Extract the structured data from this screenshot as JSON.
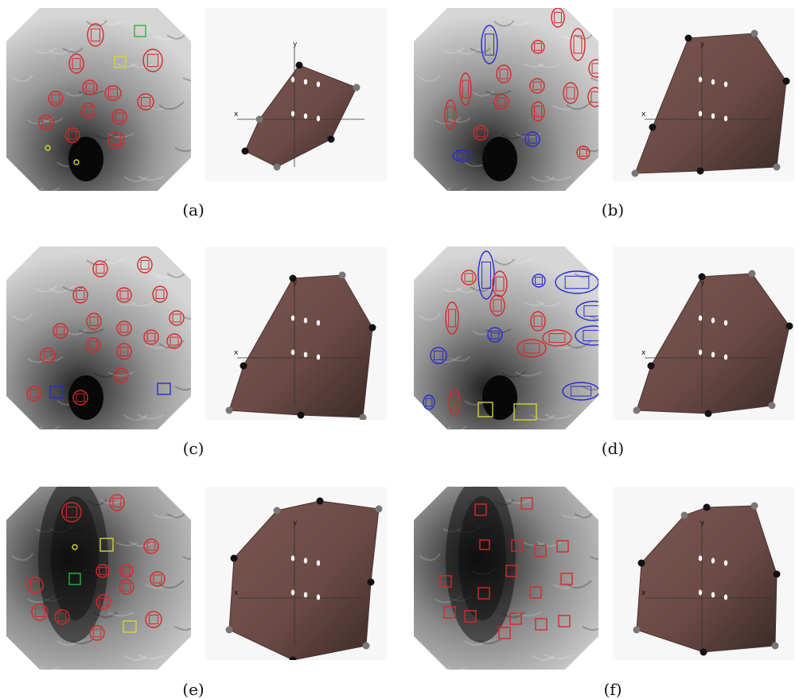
{
  "figure": {
    "panels": [
      {
        "id": "a",
        "caption": "(a)",
        "endoscopy": {
          "tone": "light",
          "features": [
            {
              "shape": "ellipse",
              "color": "red"
            },
            {
              "shape": "ellipse",
              "color": "red"
            },
            {
              "shape": "ellipse",
              "color": "red"
            },
            {
              "shape": "ellipse",
              "color": "red"
            },
            {
              "shape": "ellipse",
              "color": "red"
            },
            {
              "shape": "ellipse",
              "color": "red"
            },
            {
              "shape": "ellipse",
              "color": "red"
            },
            {
              "shape": "ellipse",
              "color": "red"
            },
            {
              "shape": "ellipse",
              "color": "red"
            },
            {
              "shape": "ellipse",
              "color": "red"
            },
            {
              "shape": "ellipse",
              "color": "red"
            },
            {
              "shape": "ellipse",
              "color": "red"
            },
            {
              "shape": "ellipse",
              "color": "red"
            },
            {
              "shape": "square",
              "color": "green"
            },
            {
              "shape": "square",
              "color": "yellow"
            },
            {
              "shape": "circle",
              "color": "yellow"
            },
            {
              "shape": "circle",
              "color": "yellow"
            }
          ]
        },
        "reconstruction": {
          "axis_labels": [
            "x",
            "y"
          ]
        }
      },
      {
        "id": "b",
        "caption": "(b)",
        "endoscopy": {
          "tone": "light",
          "features": [
            {
              "shape": "ellipse",
              "color": "blue"
            },
            {
              "shape": "ellipse",
              "color": "red"
            },
            {
              "shape": "ellipse",
              "color": "red"
            },
            {
              "shape": "ellipse",
              "color": "red"
            },
            {
              "shape": "ellipse",
              "color": "red"
            },
            {
              "shape": "ellipse",
              "color": "red"
            },
            {
              "shape": "ellipse",
              "color": "red"
            },
            {
              "shape": "ellipse",
              "color": "red"
            },
            {
              "shape": "ellipse",
              "color": "red"
            },
            {
              "shape": "ellipse",
              "color": "red"
            },
            {
              "shape": "ellipse",
              "color": "red"
            },
            {
              "shape": "ellipse",
              "color": "red"
            },
            {
              "shape": "ellipse",
              "color": "red"
            },
            {
              "shape": "ellipse",
              "color": "red"
            },
            {
              "shape": "ellipse",
              "color": "blue"
            },
            {
              "shape": "ellipse",
              "color": "blue"
            },
            {
              "shape": "ellipse",
              "color": "red"
            }
          ]
        },
        "reconstruction": {
          "axis_labels": [
            "x",
            "y"
          ]
        }
      },
      {
        "id": "c",
        "caption": "(c)",
        "endoscopy": {
          "tone": "light",
          "features": [
            {
              "shape": "ellipse",
              "color": "red"
            },
            {
              "shape": "ellipse",
              "color": "red"
            },
            {
              "shape": "ellipse",
              "color": "red"
            },
            {
              "shape": "ellipse",
              "color": "red"
            },
            {
              "shape": "ellipse",
              "color": "red"
            },
            {
              "shape": "ellipse",
              "color": "red"
            },
            {
              "shape": "ellipse",
              "color": "red"
            },
            {
              "shape": "ellipse",
              "color": "red"
            },
            {
              "shape": "ellipse",
              "color": "red"
            },
            {
              "shape": "ellipse",
              "color": "red"
            },
            {
              "shape": "ellipse",
              "color": "red"
            },
            {
              "shape": "ellipse",
              "color": "red"
            },
            {
              "shape": "ellipse",
              "color": "red"
            },
            {
              "shape": "ellipse",
              "color": "red"
            },
            {
              "shape": "ellipse",
              "color": "red"
            },
            {
              "shape": "square",
              "color": "blue"
            },
            {
              "shape": "ellipse",
              "color": "red"
            },
            {
              "shape": "ellipse",
              "color": "red"
            },
            {
              "shape": "square",
              "color": "blue"
            }
          ]
        },
        "reconstruction": {
          "axis_labels": [
            "x",
            "y"
          ]
        }
      },
      {
        "id": "d",
        "caption": "(d)",
        "endoscopy": {
          "tone": "light",
          "features": [
            {
              "shape": "ellipse",
              "color": "blue"
            },
            {
              "shape": "ellipse",
              "color": "red"
            },
            {
              "shape": "ellipse",
              "color": "red"
            },
            {
              "shape": "ellipse",
              "color": "blue"
            },
            {
              "shape": "ellipse",
              "color": "blue"
            },
            {
              "shape": "ellipse",
              "color": "blue"
            },
            {
              "shape": "ellipse",
              "color": "blue"
            },
            {
              "shape": "ellipse",
              "color": "red"
            },
            {
              "shape": "ellipse",
              "color": "red"
            },
            {
              "shape": "ellipse",
              "color": "red"
            },
            {
              "shape": "ellipse",
              "color": "blue"
            },
            {
              "shape": "ellipse",
              "color": "red"
            },
            {
              "shape": "ellipse",
              "color": "red"
            },
            {
              "shape": "ellipse",
              "color": "blue"
            },
            {
              "shape": "ellipse",
              "color": "blue"
            },
            {
              "shape": "ellipse",
              "color": "blue"
            },
            {
              "shape": "ellipse",
              "color": "red"
            },
            {
              "shape": "square",
              "color": "yellow"
            },
            {
              "shape": "square",
              "color": "yellow"
            }
          ]
        },
        "reconstruction": {
          "axis_labels": [
            "x",
            "y"
          ]
        }
      },
      {
        "id": "e",
        "caption": "(e)",
        "endoscopy": {
          "tone": "dark",
          "features": [
            {
              "shape": "ellipse",
              "color": "red"
            },
            {
              "shape": "ellipse",
              "color": "red"
            },
            {
              "shape": "circle",
              "color": "yellow"
            },
            {
              "shape": "square",
              "color": "yellow"
            },
            {
              "shape": "ellipse",
              "color": "red"
            },
            {
              "shape": "square",
              "color": "green"
            },
            {
              "shape": "ellipse",
              "color": "red"
            },
            {
              "shape": "ellipse",
              "color": "red"
            },
            {
              "shape": "ellipse",
              "color": "red"
            },
            {
              "shape": "ellipse",
              "color": "red"
            },
            {
              "shape": "ellipse",
              "color": "red"
            },
            {
              "shape": "ellipse",
              "color": "red"
            },
            {
              "shape": "ellipse",
              "color": "red"
            },
            {
              "shape": "ellipse",
              "color": "red"
            },
            {
              "shape": "ellipse",
              "color": "red"
            },
            {
              "shape": "square",
              "color": "yellow"
            },
            {
              "shape": "ellipse",
              "color": "red"
            }
          ]
        },
        "reconstruction": {
          "axis_labels": [
            "x",
            "y"
          ]
        }
      },
      {
        "id": "f",
        "caption": "(f)",
        "endoscopy": {
          "tone": "dark",
          "features": [
            {
              "shape": "square",
              "color": "red"
            },
            {
              "shape": "square",
              "color": "red"
            },
            {
              "shape": "square",
              "color": "red"
            },
            {
              "shape": "square",
              "color": "red"
            },
            {
              "shape": "square",
              "color": "red"
            },
            {
              "shape": "square",
              "color": "red"
            },
            {
              "shape": "square",
              "color": "red"
            },
            {
              "shape": "square",
              "color": "red"
            },
            {
              "shape": "square",
              "color": "red"
            },
            {
              "shape": "square",
              "color": "red"
            },
            {
              "shape": "square",
              "color": "red"
            },
            {
              "shape": "square",
              "color": "red"
            },
            {
              "shape": "square",
              "color": "red"
            },
            {
              "shape": "square",
              "color": "red"
            },
            {
              "shape": "square",
              "color": "red"
            },
            {
              "shape": "square",
              "color": "red"
            },
            {
              "shape": "square",
              "color": "red"
            }
          ]
        },
        "reconstruction": {
          "axis_labels": [
            "x",
            "y"
          ]
        }
      }
    ],
    "colors": {
      "red": "#d42a2a",
      "blue": "#2a2ad0",
      "green": "#2bb33a",
      "yellow": "#d8d23a",
      "tissue": "#6b4a45",
      "tissue_dark": "#3a2a28"
    }
  }
}
